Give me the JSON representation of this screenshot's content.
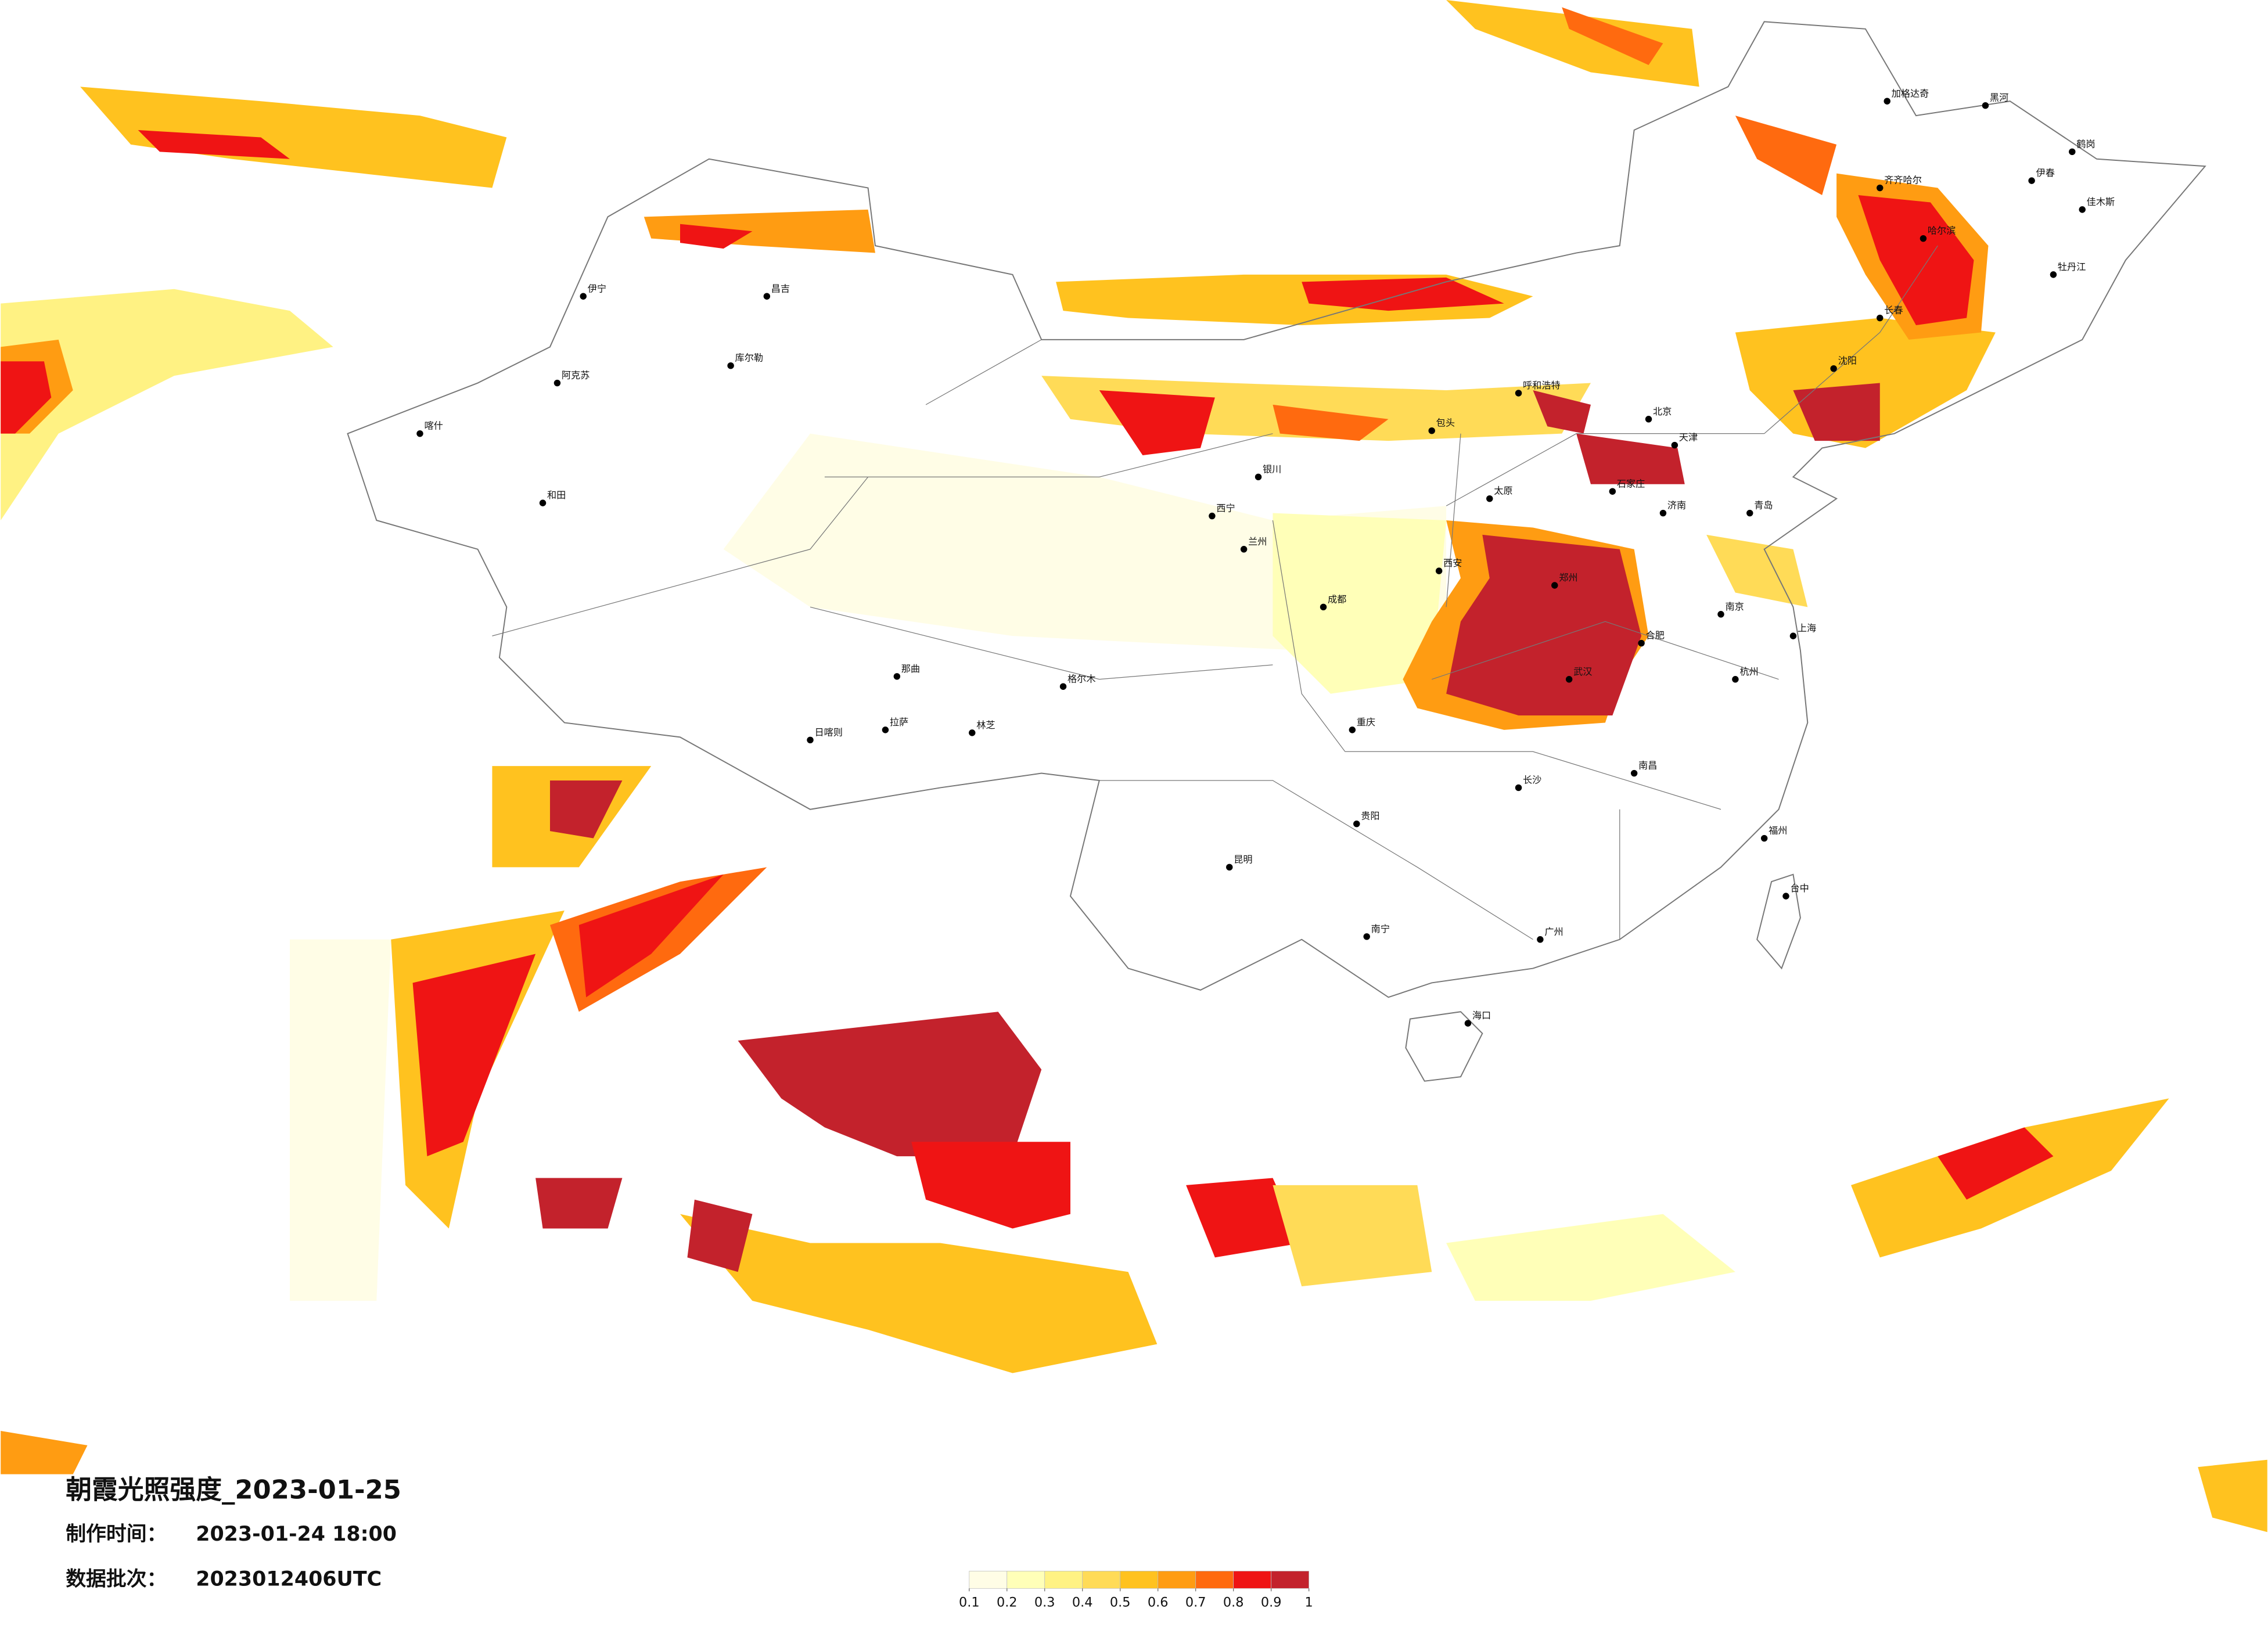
{
  "title": "朝霞光照强度_2023-01-25",
  "made_time": {
    "label": "制作时间：",
    "value": "2023-01-24 18:00"
  },
  "batch": {
    "label": "数据批次：",
    "value": "2023012406UTC"
  },
  "legend": {
    "ticks": [
      0.1,
      0.2,
      0.3,
      0.4,
      0.5,
      0.6,
      0.7,
      0.8,
      0.9,
      1
    ],
    "colors": [
      "#fffde6",
      "#ffffb8",
      "#fff283",
      "#ffdb57",
      "#ffc21f",
      "#ff9c12",
      "#ff6a0f",
      "#ef1414",
      "#c3222c"
    ]
  },
  "cities": [
    "加格达奇",
    "黑河",
    "齐齐哈尔",
    "伊春",
    "鹤岗",
    "佳木斯",
    "哈尔滨",
    "牡丹江",
    "长春",
    "沈阳",
    "呼和浩特",
    "北京",
    "天津",
    "石家庄",
    "济南",
    "郑州",
    "西安",
    "武汉",
    "南京",
    "上海",
    "成都",
    "重庆",
    "贵阳",
    "昆明",
    "南宁",
    "广州",
    "福州",
    "台中",
    "海口",
    "拉萨",
    "日喀则",
    "林芝",
    "和田",
    "喀什",
    "阿克苏",
    "库尔勒",
    "昌吉",
    "伊宁",
    "格尔木",
    "西宁",
    "兰州",
    "银川",
    "那曲",
    "包头",
    "长沙",
    "南昌",
    "杭州",
    "合肥",
    "太原",
    "青岛"
  ]
}
